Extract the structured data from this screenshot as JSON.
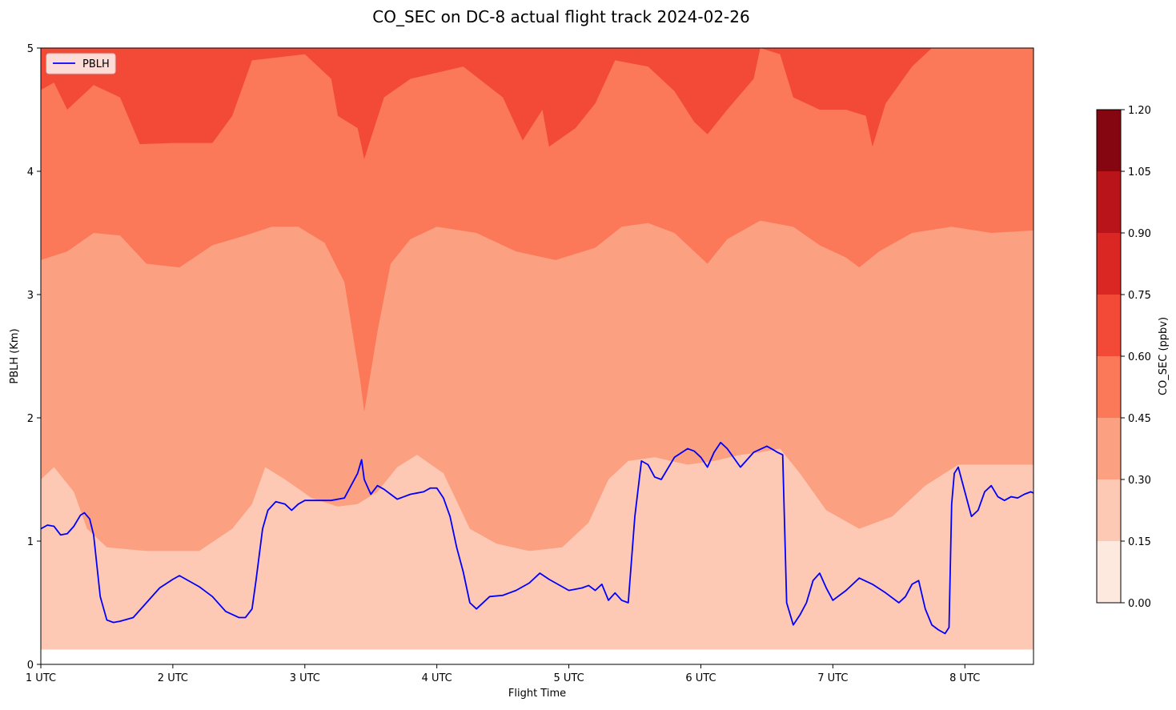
{
  "chart_data": {
    "type": "contour",
    "title": "CO_SEC on DC-8 actual flight track 2024-02-26",
    "xlabel": "Flight Time",
    "ylabel": "PBLH (Km)",
    "x_units": "hours UTC",
    "xlim": [
      1.0,
      8.52
    ],
    "ylim": [
      0,
      5
    ],
    "x_ticks": [
      1,
      2,
      3,
      4,
      5,
      6,
      7,
      8
    ],
    "x_tick_labels": [
      "1 UTC",
      "2 UTC",
      "3 UTC",
      "4 UTC",
      "5 UTC",
      "6 UTC",
      "7 UTC",
      "8 UTC"
    ],
    "y_ticks": [
      0,
      1,
      2,
      3,
      4,
      5
    ],
    "y_tick_labels": [
      "0",
      "1",
      "2",
      "3",
      "4",
      "5"
    ],
    "legend": {
      "position": "top-left",
      "entries": [
        {
          "label": "PBLH",
          "color": "#0000ff"
        }
      ]
    },
    "colorbar": {
      "label": "CO_SEC (ppbv)",
      "levels": [
        0.0,
        0.15,
        0.3,
        0.45,
        0.6,
        0.75,
        0.9,
        1.05,
        1.2
      ],
      "tick_labels": [
        "0.00",
        "0.15",
        "0.30",
        "0.45",
        "0.60",
        "0.75",
        "0.90",
        "1.05",
        "1.20"
      ],
      "colors": [
        "#fee9df",
        "#fdc9b4",
        "#fca082",
        "#fb7858",
        "#f24a36",
        "#da2723",
        "#b81419",
        "#850510"
      ]
    },
    "contour_bands": [
      {
        "level": "0.60-0.75",
        "lower_boundary": [
          [
            1.0,
            4.66
          ],
          [
            1.1,
            4.72
          ],
          [
            1.2,
            4.5
          ],
          [
            1.4,
            4.7
          ],
          [
            1.6,
            4.6
          ],
          [
            1.75,
            4.22
          ],
          [
            2.0,
            4.23
          ],
          [
            2.3,
            4.23
          ],
          [
            2.45,
            4.45
          ],
          [
            2.6,
            4.9
          ],
          [
            3.0,
            4.95
          ],
          [
            3.2,
            4.75
          ],
          [
            3.25,
            4.45
          ],
          [
            3.4,
            4.35
          ],
          [
            3.45,
            4.1
          ],
          [
            3.6,
            4.6
          ],
          [
            3.8,
            4.75
          ],
          [
            4.2,
            4.85
          ],
          [
            4.5,
            4.6
          ],
          [
            4.65,
            4.25
          ],
          [
            4.8,
            4.5
          ],
          [
            4.85,
            4.2
          ],
          [
            5.05,
            4.35
          ],
          [
            5.2,
            4.55
          ],
          [
            5.35,
            4.9
          ],
          [
            5.6,
            4.85
          ],
          [
            5.8,
            4.65
          ],
          [
            5.95,
            4.4
          ],
          [
            6.05,
            4.3
          ],
          [
            6.2,
            4.5
          ],
          [
            6.4,
            4.75
          ],
          [
            6.45,
            5.0
          ],
          [
            6.6,
            4.95
          ],
          [
            6.7,
            4.6
          ],
          [
            6.9,
            4.5
          ],
          [
            7.1,
            4.5
          ],
          [
            7.25,
            4.45
          ],
          [
            7.3,
            4.2
          ],
          [
            7.4,
            4.55
          ],
          [
            7.6,
            4.85
          ],
          [
            7.75,
            5.0
          ],
          [
            8.52,
            5.0
          ]
        ]
      },
      {
        "level": "0.45-0.60",
        "lower_boundary": [
          [
            1.0,
            3.28
          ],
          [
            1.2,
            3.35
          ],
          [
            1.4,
            3.5
          ],
          [
            1.6,
            3.48
          ],
          [
            1.8,
            3.25
          ],
          [
            2.05,
            3.22
          ],
          [
            2.3,
            3.4
          ],
          [
            2.55,
            3.48
          ],
          [
            2.75,
            3.55
          ],
          [
            2.95,
            3.55
          ],
          [
            3.15,
            3.42
          ],
          [
            3.3,
            3.1
          ],
          [
            3.42,
            2.3
          ],
          [
            3.45,
            2.05
          ],
          [
            3.55,
            2.7
          ],
          [
            3.65,
            3.25
          ],
          [
            3.8,
            3.45
          ],
          [
            4.0,
            3.55
          ],
          [
            4.3,
            3.5
          ],
          [
            4.6,
            3.35
          ],
          [
            4.9,
            3.28
          ],
          [
            5.2,
            3.38
          ],
          [
            5.4,
            3.55
          ],
          [
            5.6,
            3.58
          ],
          [
            5.8,
            3.5
          ],
          [
            5.95,
            3.35
          ],
          [
            6.05,
            3.25
          ],
          [
            6.2,
            3.45
          ],
          [
            6.45,
            3.6
          ],
          [
            6.7,
            3.55
          ],
          [
            6.9,
            3.4
          ],
          [
            7.1,
            3.3
          ],
          [
            7.2,
            3.22
          ],
          [
            7.35,
            3.35
          ],
          [
            7.6,
            3.5
          ],
          [
            7.9,
            3.55
          ],
          [
            8.2,
            3.5
          ],
          [
            8.52,
            3.52
          ]
        ]
      },
      {
        "level": "0.30-0.45",
        "lower_boundary": [
          [
            1.0,
            1.5
          ],
          [
            1.1,
            1.6
          ],
          [
            1.25,
            1.4
          ],
          [
            1.35,
            1.1
          ],
          [
            1.5,
            0.95
          ],
          [
            1.8,
            0.92
          ],
          [
            2.2,
            0.92
          ],
          [
            2.45,
            1.1
          ],
          [
            2.6,
            1.3
          ],
          [
            2.7,
            1.6
          ],
          [
            2.85,
            1.5
          ],
          [
            3.05,
            1.35
          ],
          [
            3.25,
            1.28
          ],
          [
            3.4,
            1.3
          ],
          [
            3.55,
            1.4
          ],
          [
            3.7,
            1.6
          ],
          [
            3.85,
            1.7
          ],
          [
            4.05,
            1.55
          ],
          [
            4.25,
            1.1
          ],
          [
            4.45,
            0.98
          ],
          [
            4.7,
            0.92
          ],
          [
            4.95,
            0.95
          ],
          [
            5.15,
            1.15
          ],
          [
            5.3,
            1.5
          ],
          [
            5.45,
            1.65
          ],
          [
            5.65,
            1.68
          ],
          [
            5.9,
            1.62
          ],
          [
            6.1,
            1.65
          ],
          [
            6.3,
            1.7
          ],
          [
            6.45,
            1.72
          ],
          [
            6.6,
            1.75
          ],
          [
            6.75,
            1.55
          ],
          [
            6.95,
            1.25
          ],
          [
            7.2,
            1.1
          ],
          [
            7.45,
            1.2
          ],
          [
            7.7,
            1.45
          ],
          [
            7.95,
            1.62
          ],
          [
            8.15,
            1.62
          ],
          [
            8.52,
            1.62
          ]
        ]
      },
      {
        "level": "0.15-0.30",
        "lower_boundary": [
          [
            1.0,
            0.12
          ],
          [
            8.52,
            0.12
          ]
        ]
      }
    ],
    "series": [
      {
        "name": "PBLH",
        "color": "#0000ff",
        "x": [
          1.0,
          1.05,
          1.1,
          1.15,
          1.2,
          1.25,
          1.3,
          1.33,
          1.37,
          1.4,
          1.45,
          1.5,
          1.55,
          1.6,
          1.7,
          1.8,
          1.9,
          2.0,
          2.05,
          2.1,
          2.2,
          2.3,
          2.4,
          2.5,
          2.55,
          2.6,
          2.63,
          2.68,
          2.72,
          2.78,
          2.85,
          2.9,
          2.95,
          3.0,
          3.1,
          3.2,
          3.3,
          3.35,
          3.4,
          3.43,
          3.45,
          3.5,
          3.55,
          3.6,
          3.65,
          3.7,
          3.75,
          3.8,
          3.85,
          3.9,
          3.95,
          4.0,
          4.05,
          4.1,
          4.15,
          4.2,
          4.25,
          4.3,
          4.4,
          4.5,
          4.6,
          4.7,
          4.78,
          4.85,
          4.9,
          5.0,
          5.1,
          5.15,
          5.2,
          5.25,
          5.3,
          5.35,
          5.4,
          5.45,
          5.5,
          5.55,
          5.6,
          5.65,
          5.7,
          5.8,
          5.9,
          5.95,
          6.0,
          6.05,
          6.1,
          6.15,
          6.2,
          6.3,
          6.4,
          6.5,
          6.55,
          6.58,
          6.62,
          6.65,
          6.7,
          6.75,
          6.8,
          6.85,
          6.9,
          6.95,
          7.0,
          7.1,
          7.2,
          7.3,
          7.4,
          7.5,
          7.55,
          7.6,
          7.65,
          7.7,
          7.75,
          7.8,
          7.85,
          7.88,
          7.9,
          7.92,
          7.95,
          8.0,
          8.05,
          8.1,
          8.15,
          8.2,
          8.25,
          8.3,
          8.35,
          8.4,
          8.45,
          8.5,
          8.52
        ],
        "y": [
          1.1,
          1.13,
          1.12,
          1.05,
          1.06,
          1.12,
          1.21,
          1.23,
          1.18,
          1.05,
          0.55,
          0.36,
          0.34,
          0.35,
          0.38,
          0.5,
          0.62,
          0.69,
          0.72,
          0.69,
          0.63,
          0.55,
          0.43,
          0.38,
          0.38,
          0.45,
          0.68,
          1.1,
          1.25,
          1.32,
          1.3,
          1.25,
          1.3,
          1.33,
          1.33,
          1.33,
          1.35,
          1.45,
          1.55,
          1.66,
          1.5,
          1.38,
          1.45,
          1.42,
          1.38,
          1.34,
          1.36,
          1.38,
          1.39,
          1.4,
          1.43,
          1.43,
          1.35,
          1.2,
          0.95,
          0.75,
          0.5,
          0.45,
          0.55,
          0.56,
          0.6,
          0.66,
          0.74,
          0.69,
          0.66,
          0.6,
          0.62,
          0.64,
          0.6,
          0.65,
          0.52,
          0.58,
          0.52,
          0.5,
          1.2,
          1.65,
          1.62,
          1.52,
          1.5,
          1.68,
          1.75,
          1.73,
          1.68,
          1.6,
          1.72,
          1.8,
          1.75,
          1.6,
          1.72,
          1.77,
          1.74,
          1.72,
          1.7,
          0.5,
          0.32,
          0.4,
          0.5,
          0.68,
          0.74,
          0.62,
          0.52,
          0.6,
          0.7,
          0.65,
          0.58,
          0.5,
          0.55,
          0.65,
          0.68,
          0.45,
          0.32,
          0.28,
          0.25,
          0.3,
          1.3,
          1.55,
          1.6,
          1.4,
          1.2,
          1.25,
          1.4,
          1.45,
          1.36,
          1.33,
          1.36,
          1.35,
          1.38,
          1.4,
          1.39
        ]
      }
    ]
  }
}
